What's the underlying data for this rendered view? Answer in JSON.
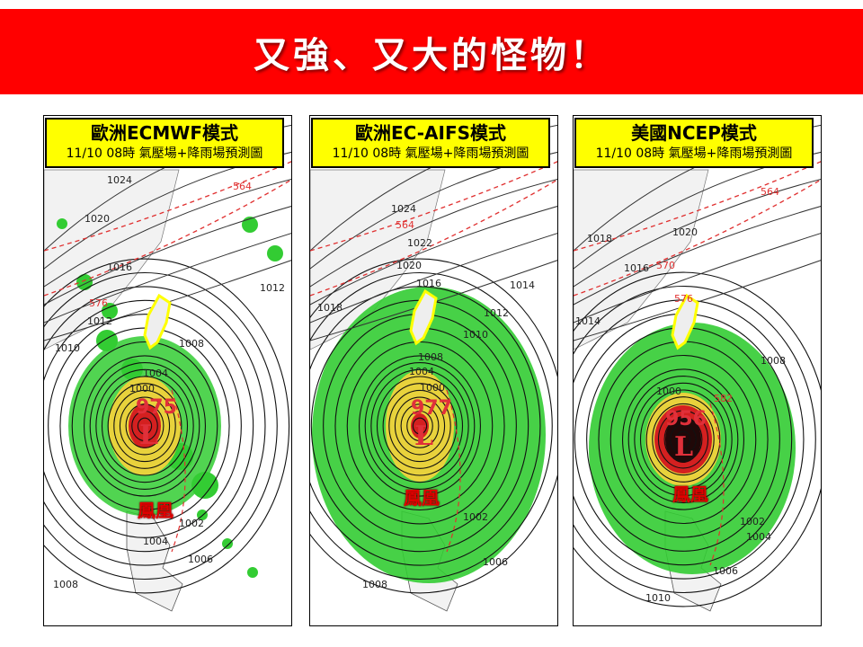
{
  "title": "又強、又大的怪物！",
  "panels": [
    {
      "model": "歐洲ECMWF模式",
      "subtitle": "11/10 08時 氣壓場+降雨場預測圖",
      "center_pressure": "975",
      "low_symbol": "L",
      "typhoon_name": "鳳凰",
      "isobar_labels": [
        "1024",
        "1020",
        "1016",
        "1012",
        "1010",
        "1008",
        "1004",
        "1000",
        "1002",
        "1004",
        "1006",
        "1008",
        "1012",
        "564",
        "576"
      ]
    },
    {
      "model": "歐洲EC-AIFS模式",
      "subtitle": "11/10 08時 氣壓場+降雨場預測圖",
      "center_pressure": "977",
      "low_symbol": "L",
      "typhoon_name": "鳳凰",
      "isobar_labels": [
        "1024",
        "1022",
        "1020",
        "1018",
        "1016",
        "1014",
        "1012",
        "1010",
        "1008",
        "1004",
        "1000",
        "1002",
        "1006",
        "1008",
        "564"
      ]
    },
    {
      "model": "美國NCEP模式",
      "subtitle": "11/10 08時 氣壓場+降雨場預測圖",
      "center_pressure": "956",
      "low_symbol": "L",
      "typhoon_name": "鳳凰",
      "isobar_labels": [
        "1018",
        "1020",
        "1016",
        "1014",
        "1008",
        "1000",
        "1002",
        "1004",
        "1006",
        "1010",
        "564",
        "570",
        "576",
        "582"
      ]
    }
  ],
  "colors": {
    "banner": "#ff0000",
    "header_box": "#ffff00",
    "rain_light": "#33cc33",
    "rain_heavy": "#e8d23c",
    "rain_extreme": "#d42020",
    "taiwan_outline": "#ffff00",
    "contour_dashed": "#e03030"
  }
}
